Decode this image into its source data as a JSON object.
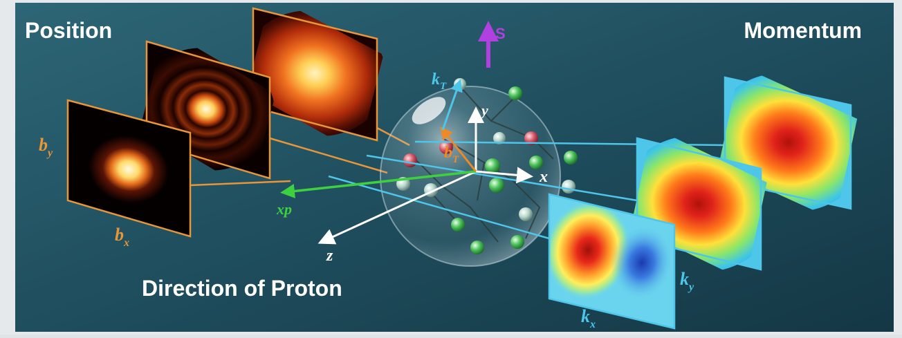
{
  "headings": {
    "position": "Position",
    "momentum": "Momentum",
    "direction": "Direction of Proton"
  },
  "axes": {
    "x": "x",
    "y": "y",
    "z": "z",
    "xp": "xp",
    "spin": "S",
    "kT": "k",
    "kT_sub": "T",
    "bT": "b",
    "bT_sub": "T"
  },
  "position_axes": {
    "by": "b",
    "by_sub": "y",
    "bx": "b",
    "bx_sub": "x"
  },
  "momentum_axes": {
    "ky": "k",
    "ky_sub": "y",
    "kx": "k",
    "kx_sub": "x"
  },
  "colors": {
    "background": "#1f4e5e",
    "position_frame": "#e7963a",
    "momentum_frame": "#4ec6ea",
    "spin_arrow": "#b040e0",
    "xp_arrow": "#3fd040",
    "bT_arrow": "#ee8a25",
    "kT_arrow": "#4ec6ea"
  }
}
